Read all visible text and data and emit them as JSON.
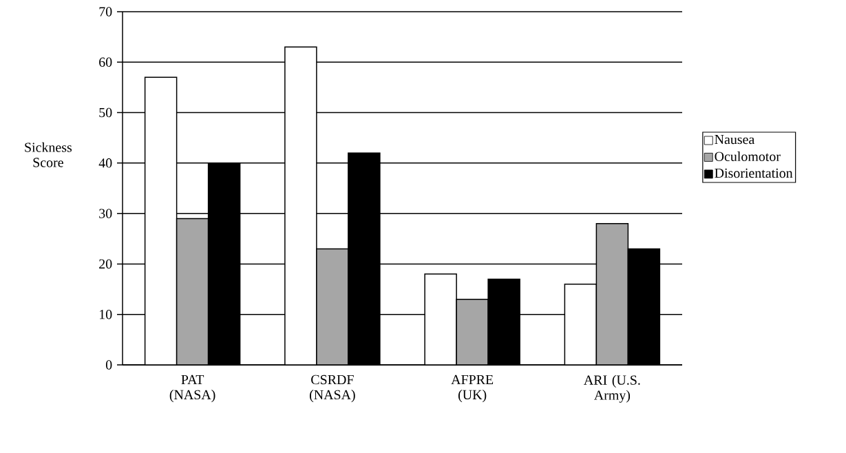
{
  "chart_data": {
    "type": "bar",
    "ylabel": "Sickness Score",
    "categories": [
      "PAT (NASA)",
      "CSRDF (NASA)",
      "AFPRE (UK)",
      "ARI (U.S. Army)"
    ],
    "series": [
      {
        "name": "Nausea",
        "color": "#ffffff",
        "values": [
          57,
          63,
          18,
          16
        ]
      },
      {
        "name": "Oculomotor",
        "color": "#a6a6a6",
        "values": [
          29,
          23,
          13,
          28
        ]
      },
      {
        "name": "Disorientation",
        "color": "#000000",
        "values": [
          40,
          42,
          17,
          23
        ]
      }
    ],
    "ylim": [
      0,
      70
    ],
    "yticks": [
      0,
      10,
      20,
      30,
      40,
      50,
      60,
      70
    ],
    "grid": "y",
    "legend": "right"
  }
}
